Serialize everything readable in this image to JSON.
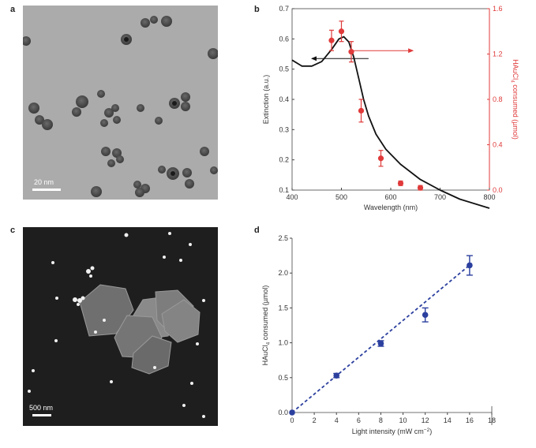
{
  "panels": {
    "a": {
      "letter": "a",
      "scale_label": "20 nm"
    },
    "b": {
      "letter": "b"
    },
    "c": {
      "letter": "c",
      "scale_label": "500 nm"
    },
    "d": {
      "letter": "d"
    }
  },
  "colors": {
    "red": "#e03a3a",
    "blue": "#2b3f9e",
    "black": "#111111",
    "axis": "#444444"
  },
  "chart_data": [
    {
      "panel": "b",
      "type": "line",
      "xlabel": "Wavelength (nm)",
      "ylabel": "Extinction (a.u.)",
      "y2label_parts": [
        "HAuCl",
        "4",
        " consumed (µmol)"
      ],
      "xlim": [
        400,
        800
      ],
      "ylim": [
        0.1,
        0.7
      ],
      "y2lim": [
        0,
        1.6
      ],
      "xticks": [
        "400",
        "500",
        "600",
        "700",
        "800"
      ],
      "yticks": [
        "0.1",
        "0.2",
        "0.3",
        "0.4",
        "0.5",
        "0.6",
        "0.7"
      ],
      "y2ticks": [
        "0.0",
        "0.4",
        "0.8",
        "1.2",
        "1.6"
      ],
      "extinction_curve": {
        "x": [
          400,
          420,
          440,
          460,
          480,
          495,
          505,
          515,
          525,
          535,
          545,
          555,
          570,
          590,
          620,
          660,
          700,
          740,
          800
        ],
        "y": [
          0.53,
          0.51,
          0.51,
          0.525,
          0.565,
          0.6,
          0.607,
          0.59,
          0.54,
          0.47,
          0.4,
          0.345,
          0.285,
          0.235,
          0.185,
          0.135,
          0.1,
          0.07,
          0.04
        ]
      },
      "consumed_points": {
        "x": [
          480,
          500,
          520,
          540,
          580,
          620,
          660
        ],
        "y": [
          1.32,
          1.4,
          1.22,
          0.7,
          0.28,
          0.06,
          0.02
        ],
        "err": [
          0.09,
          0.09,
          0.09,
          0.1,
          0.07,
          0.02,
          0.02
        ]
      }
    },
    {
      "panel": "d",
      "type": "scatter",
      "xlabel_parts": [
        "Light intensity (mW cm",
        "−2",
        ")"
      ],
      "ylabel_parts": [
        "HAuCl",
        "4",
        " consumed (µmol)"
      ],
      "xlim": [
        0,
        18
      ],
      "ylim": [
        0,
        2.5
      ],
      "xticks": [
        "0",
        "2",
        "4",
        "6",
        "8",
        "10",
        "12",
        "14",
        "16",
        "18"
      ],
      "yticks": [
        "0.0",
        "0.5",
        "1.0",
        "1.5",
        "2.0",
        "2.5"
      ],
      "points": {
        "x": [
          0,
          4,
          8,
          12,
          16
        ],
        "y": [
          0,
          0.53,
          0.99,
          1.4,
          2.11
        ],
        "err": [
          0,
          0.03,
          0.04,
          0.1,
          0.14
        ]
      },
      "fit_line": {
        "x": [
          0,
          16.2
        ],
        "y": [
          0,
          2.14
        ]
      }
    }
  ]
}
